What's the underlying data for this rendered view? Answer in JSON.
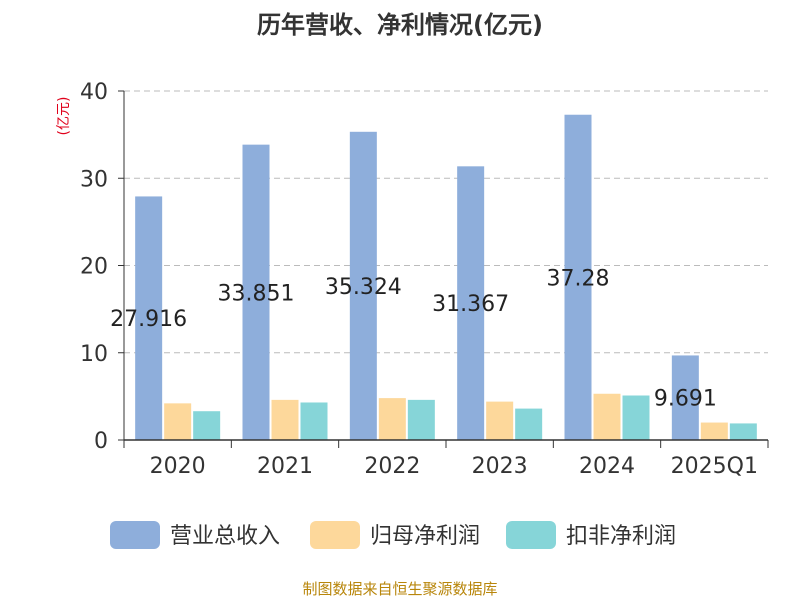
{
  "chart_data": {
    "type": "bar",
    "title": "历年营收、净利情况(亿元)",
    "ylabel": "(亿元)",
    "xlabel": "",
    "ylim": [
      0,
      40
    ],
    "yticks": [
      0,
      10,
      20,
      30,
      40
    ],
    "grid": true,
    "legend_position": "bottom",
    "categories": [
      "2020",
      "2021",
      "2022",
      "2023",
      "2024",
      "2025Q1"
    ],
    "series": [
      {
        "name": "营业总收入",
        "color": "#8eaedb",
        "values": [
          27.916,
          33.851,
          35.324,
          31.367,
          37.28,
          9.691
        ]
      },
      {
        "name": "归母净利润",
        "color": "#fdd89b",
        "values": [
          4.2,
          4.6,
          4.8,
          4.4,
          5.3,
          2.0
        ]
      },
      {
        "name": "扣非净利润",
        "color": "#86d5d8",
        "values": [
          3.3,
          4.3,
          4.6,
          3.6,
          5.1,
          1.9
        ]
      }
    ],
    "data_labels": [
      "27.916",
      "33.851",
      "35.324",
      "31.367",
      "37.28",
      "9.691"
    ]
  },
  "source": "制图数据来自恒生聚源数据库"
}
